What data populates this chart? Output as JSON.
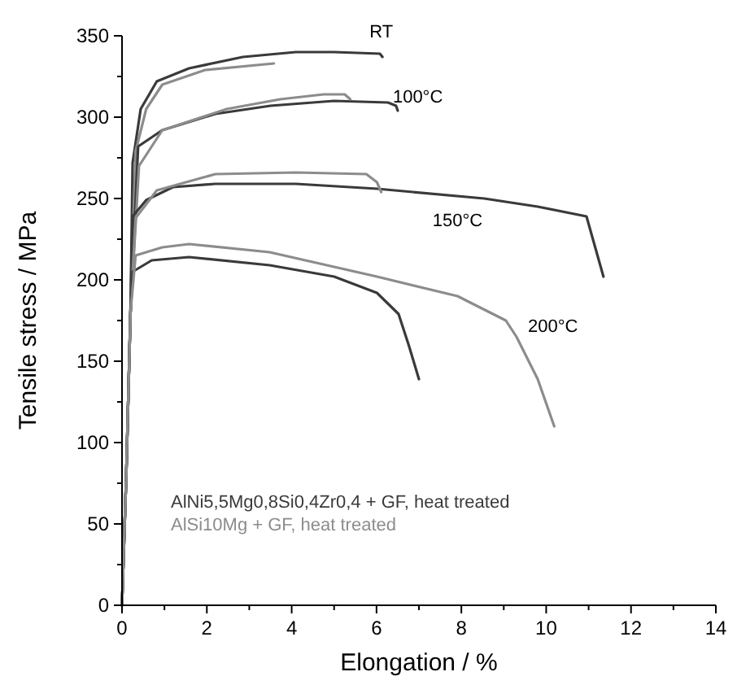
{
  "chart_data": {
    "type": "line",
    "xlabel": "Elongation / %",
    "ylabel": "Tensile stress / MPa",
    "xlim": [
      0,
      14
    ],
    "ylim": [
      0,
      350
    ],
    "xticks": [
      0,
      {
        "value": 1,
        "label": null
      },
      2,
      {
        "value": 3,
        "label": null
      },
      4,
      {
        "value": 5,
        "label": null
      },
      6,
      {
        "value": 7,
        "label": null
      },
      8,
      {
        "value": 9,
        "label": null
      },
      10,
      {
        "value": 11,
        "label": null
      },
      12,
      {
        "value": 13,
        "label": null
      },
      14
    ],
    "yticks": [
      0,
      {
        "value": 25,
        "label": null
      },
      50,
      {
        "value": 75,
        "label": null
      },
      100,
      {
        "value": 125,
        "label": null
      },
      150,
      {
        "value": 175,
        "label": null
      },
      200,
      {
        "value": 225,
        "label": null
      },
      250,
      {
        "value": 275,
        "label": null
      },
      300,
      {
        "value": 325,
        "label": null
      },
      350
    ],
    "grid": false,
    "legend": "bottom left",
    "marker": "none",
    "line_style": "solid",
    "series": [
      {
        "name": "AlNi5,5Mg0,8Si0,4Zr0,4 + GF, heat treated",
        "color": "#3a3a3a",
        "x": [
          0,
          0.1,
          0.2,
          0.25,
          0.44,
          0.82,
          1.58,
          2.85,
          4.1,
          5.0,
          6.08,
          6.14
        ],
        "values": [
          0,
          80,
          180,
          272,
          305,
          322,
          330,
          337,
          340,
          340,
          339,
          337
        ]
      },
      {
        "name": "AlSi10Mg + GF, heat treated",
        "color": "#8c8c8c",
        "x": [
          0,
          0.1,
          0.2,
          0.32,
          0.57,
          0.95,
          1.96,
          3.58
        ],
        "values": [
          0,
          80,
          180,
          279,
          305,
          320,
          329,
          333
        ]
      },
      {
        "color": "#3a3a3a",
        "x": [
          0,
          0.1,
          0.2,
          0.38,
          0.95,
          2.2,
          3.5,
          5.0,
          6.27,
          6.46,
          6.5
        ],
        "values": [
          0,
          80,
          180,
          282,
          292,
          302,
          307,
          310,
          309,
          307,
          304
        ]
      },
      {
        "color": "#8c8c8c",
        "x": [
          0,
          0.1,
          0.2,
          0.4,
          0.95,
          2.47,
          3.73,
          4.75,
          5.25,
          5.38
        ],
        "values": [
          0,
          80,
          180,
          270,
          292,
          305,
          311,
          314,
          314,
          311
        ]
      },
      {
        "color": "#3a3a3a",
        "x": [
          0,
          0.1,
          0.2,
          0.25,
          0.57,
          1.2,
          2.2,
          4.1,
          6.01,
          8.54,
          9.8,
          10.95,
          11.35
        ],
        "values": [
          0,
          80,
          180,
          239,
          249,
          257,
          259,
          259,
          256,
          250,
          245,
          239,
          202
        ]
      },
      {
        "color": "#8c8c8c",
        "x": [
          0,
          0.1,
          0.2,
          0.32,
          0.82,
          2.2,
          4.1,
          5.76,
          6.01,
          6.11
        ],
        "values": [
          0,
          80,
          180,
          238,
          255,
          265,
          266,
          265,
          260,
          254
        ]
      },
      {
        "color": "#3a3a3a",
        "x": [
          0,
          0.1,
          0.2,
          0.25,
          0.7,
          1.58,
          3.48,
          5.0,
          6.01,
          6.52,
          6.77,
          7.0
        ],
        "values": [
          0,
          80,
          180,
          205,
          212,
          214,
          209,
          202,
          192,
          179,
          159,
          139
        ]
      },
      {
        "color": "#8c8c8c",
        "x": [
          0,
          0.1,
          0.2,
          0.32,
          0.95,
          1.58,
          3.48,
          6.01,
          7.91,
          9.05,
          9.3,
          9.8,
          10.19
        ],
        "values": [
          0,
          80,
          180,
          215,
          220,
          222,
          217,
          202,
          190,
          175,
          165,
          139,
          110
        ]
      }
    ],
    "annotations": [
      "RT",
      "100°C",
      "150°C",
      "200°C"
    ]
  }
}
